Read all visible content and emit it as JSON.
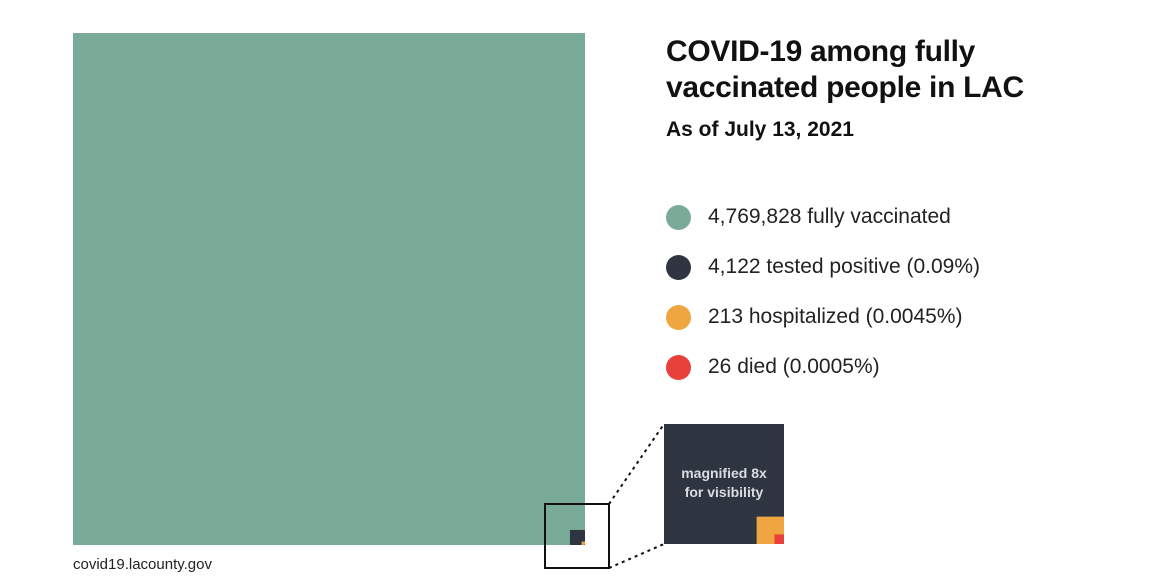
{
  "chart_data": {
    "type": "area",
    "title": "COVID-19 among fully vaccinated people in LAC",
    "subtitle": "As of July 13, 2021",
    "categories": [
      "fully vaccinated",
      "tested positive",
      "hospitalized",
      "died"
    ],
    "values": [
      4769828,
      4122,
      213,
      26
    ],
    "series": [
      {
        "name": "fully vaccinated",
        "value": 4769828,
        "label": "4,769,828 fully vaccinated",
        "color": "#7aab98"
      },
      {
        "name": "tested positive",
        "value": 4122,
        "percent": "0.09%",
        "label": "4,122 tested positive (0.09%)",
        "color": "#2e3540"
      },
      {
        "name": "hospitalized",
        "value": 213,
        "percent": "0.0045%",
        "label": "213 hospitalized (0.0045%)",
        "color": "#f0a640"
      },
      {
        "name": "died",
        "value": 26,
        "percent": "0.0005%",
        "label": "26 died (0.0005%)",
        "color": "#e8403a"
      }
    ],
    "magnification": 8,
    "inset_label_line1": "magnified 8x",
    "inset_label_line2": "for visibility",
    "legend_position": "right",
    "source": "covid19.lacounty.gov"
  }
}
